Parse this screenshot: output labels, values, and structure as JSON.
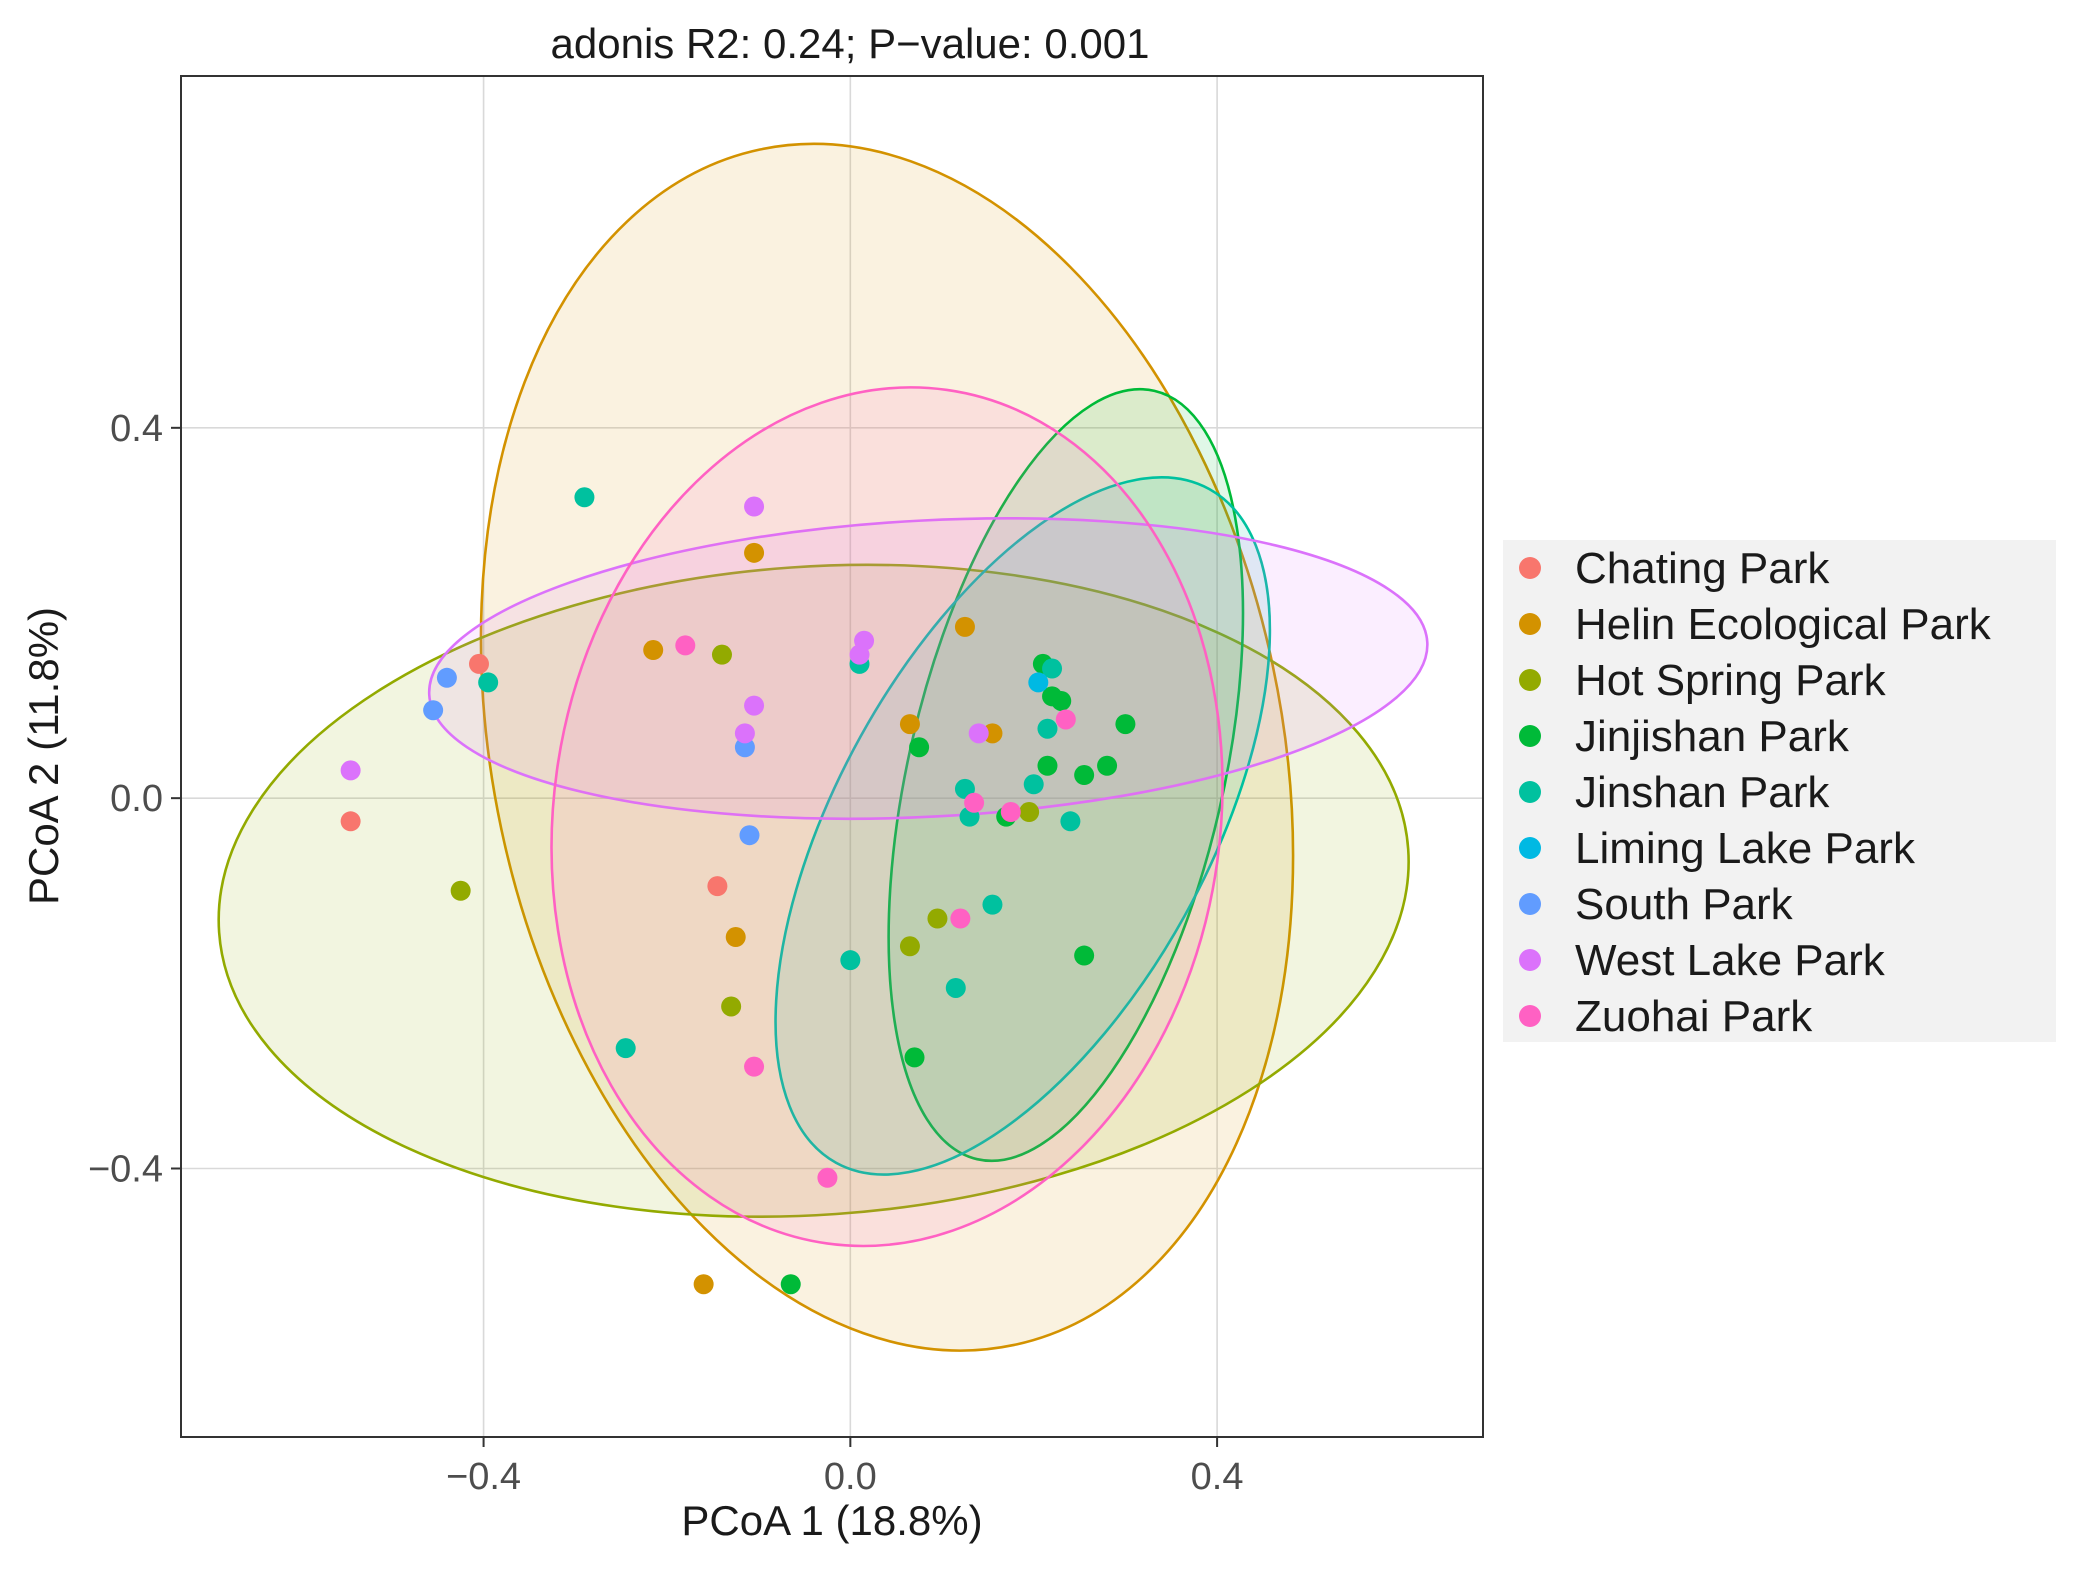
{
  "chart_data": {
    "type": "scatter",
    "title": "adonis R2: 0.24; P−value: 0.001",
    "xlabel": "PCoA 1 (18.8%)",
    "ylabel": "PCoA 2 (11.8%)",
    "xlim": [
      -0.73,
      0.69
    ],
    "ylim": [
      -0.69,
      0.78
    ],
    "xticks": [
      -0.4,
      0.0,
      0.4
    ],
    "yticks": [
      -0.4,
      0.0,
      0.4
    ],
    "xtick_labels": [
      "−0.4",
      "0.0",
      "0.4"
    ],
    "ytick_labels": [
      "−0.4",
      "0.0",
      "0.4"
    ],
    "grid": true,
    "legend_position": "right",
    "ellipse_alpha": 0.12,
    "series": [
      {
        "name": "Chating Park",
        "color": "#F8766D",
        "points": [
          [
            -0.545,
            -0.025
          ],
          [
            -0.405,
            0.145
          ],
          [
            -0.145,
            -0.095
          ]
        ],
        "ellipse": null
      },
      {
        "name": "Helin Ecological Park",
        "color": "#D39200",
        "points": [
          [
            -0.105,
            0.265
          ],
          [
            -0.215,
            0.16
          ],
          [
            0.125,
            0.185
          ],
          [
            0.065,
            0.08
          ],
          [
            0.155,
            0.07
          ],
          [
            -0.125,
            -0.15
          ],
          [
            -0.16,
            -0.525
          ]
        ],
        "ellipse": {
          "cx": 0.04,
          "cy": 0.055,
          "rx": 0.43,
          "ry": 0.66,
          "angle": -12
        }
      },
      {
        "name": "Hot Spring Park",
        "color": "#93AA00",
        "points": [
          [
            -0.14,
            0.155
          ],
          [
            -0.425,
            -0.1
          ],
          [
            -0.13,
            -0.225
          ],
          [
            0.065,
            -0.16
          ],
          [
            0.095,
            -0.13
          ],
          [
            0.195,
            -0.015
          ]
        ],
        "ellipse": {
          "cx": -0.04,
          "cy": -0.1,
          "rx": 0.65,
          "ry": 0.35,
          "angle": -4
        }
      },
      {
        "name": "Jinjishan Park",
        "color": "#00BA38",
        "points": [
          [
            0.075,
            0.055
          ],
          [
            0.21,
            0.145
          ],
          [
            0.22,
            0.11
          ],
          [
            0.23,
            0.105
          ],
          [
            0.3,
            0.08
          ],
          [
            0.28,
            0.035
          ],
          [
            0.255,
            0.025
          ],
          [
            0.215,
            0.035
          ],
          [
            0.17,
            -0.02
          ],
          [
            0.255,
            -0.17
          ],
          [
            0.07,
            -0.28
          ],
          [
            -0.065,
            -0.525
          ]
        ],
        "ellipse": {
          "cx": 0.235,
          "cy": 0.025,
          "rx": 0.43,
          "ry": 0.17,
          "angle": -77
        }
      },
      {
        "name": "Jinshan Park",
        "color": "#00C19F",
        "points": [
          [
            -0.29,
            0.325
          ],
          [
            -0.395,
            0.125
          ],
          [
            0.01,
            0.145
          ],
          [
            0.22,
            0.14
          ],
          [
            0.215,
            0.075
          ],
          [
            0.2,
            0.015
          ],
          [
            0.125,
            0.01
          ],
          [
            0.13,
            -0.02
          ],
          [
            0.24,
            -0.025
          ],
          [
            0.155,
            -0.115
          ],
          [
            0.0,
            -0.175
          ],
          [
            0.115,
            -0.205
          ],
          [
            -0.245,
            -0.27
          ]
        ],
        "ellipse": {
          "cx": 0.188,
          "cy": -0.03,
          "rx": 0.42,
          "ry": 0.2,
          "angle": -61
        }
      },
      {
        "name": "Liming Lake Park",
        "color": "#00B9E3",
        "points": [
          [
            0.205,
            0.125
          ]
        ],
        "ellipse": null
      },
      {
        "name": "South Park",
        "color": "#619CFF",
        "points": [
          [
            -0.44,
            0.13
          ],
          [
            -0.455,
            0.095
          ],
          [
            -0.115,
            0.055
          ],
          [
            -0.11,
            -0.04
          ]
        ],
        "ellipse": null
      },
      {
        "name": "West Lake Park",
        "color": "#DB72FB",
        "points": [
          [
            -0.105,
            0.315
          ],
          [
            0.015,
            0.17
          ],
          [
            0.01,
            0.155
          ],
          [
            -0.105,
            0.1
          ],
          [
            -0.115,
            0.07
          ],
          [
            0.14,
            0.07
          ],
          [
            -0.545,
            0.03
          ]
        ],
        "ellipse": {
          "cx": 0.085,
          "cy": 0.14,
          "rx": 0.545,
          "ry": 0.16,
          "angle": -3
        }
      },
      {
        "name": "Zuohai Park",
        "color": "#FF61C3",
        "points": [
          [
            -0.18,
            0.165
          ],
          [
            0.235,
            0.085
          ],
          [
            0.135,
            -0.005
          ],
          [
            0.175,
            -0.015
          ],
          [
            0.12,
            -0.13
          ],
          [
            -0.105,
            -0.29
          ],
          [
            -0.025,
            -0.41
          ]
        ],
        "ellipse": {
          "cx": 0.04,
          "cy": -0.02,
          "rx": 0.47,
          "ry": 0.36,
          "angle": -82
        }
      }
    ]
  }
}
